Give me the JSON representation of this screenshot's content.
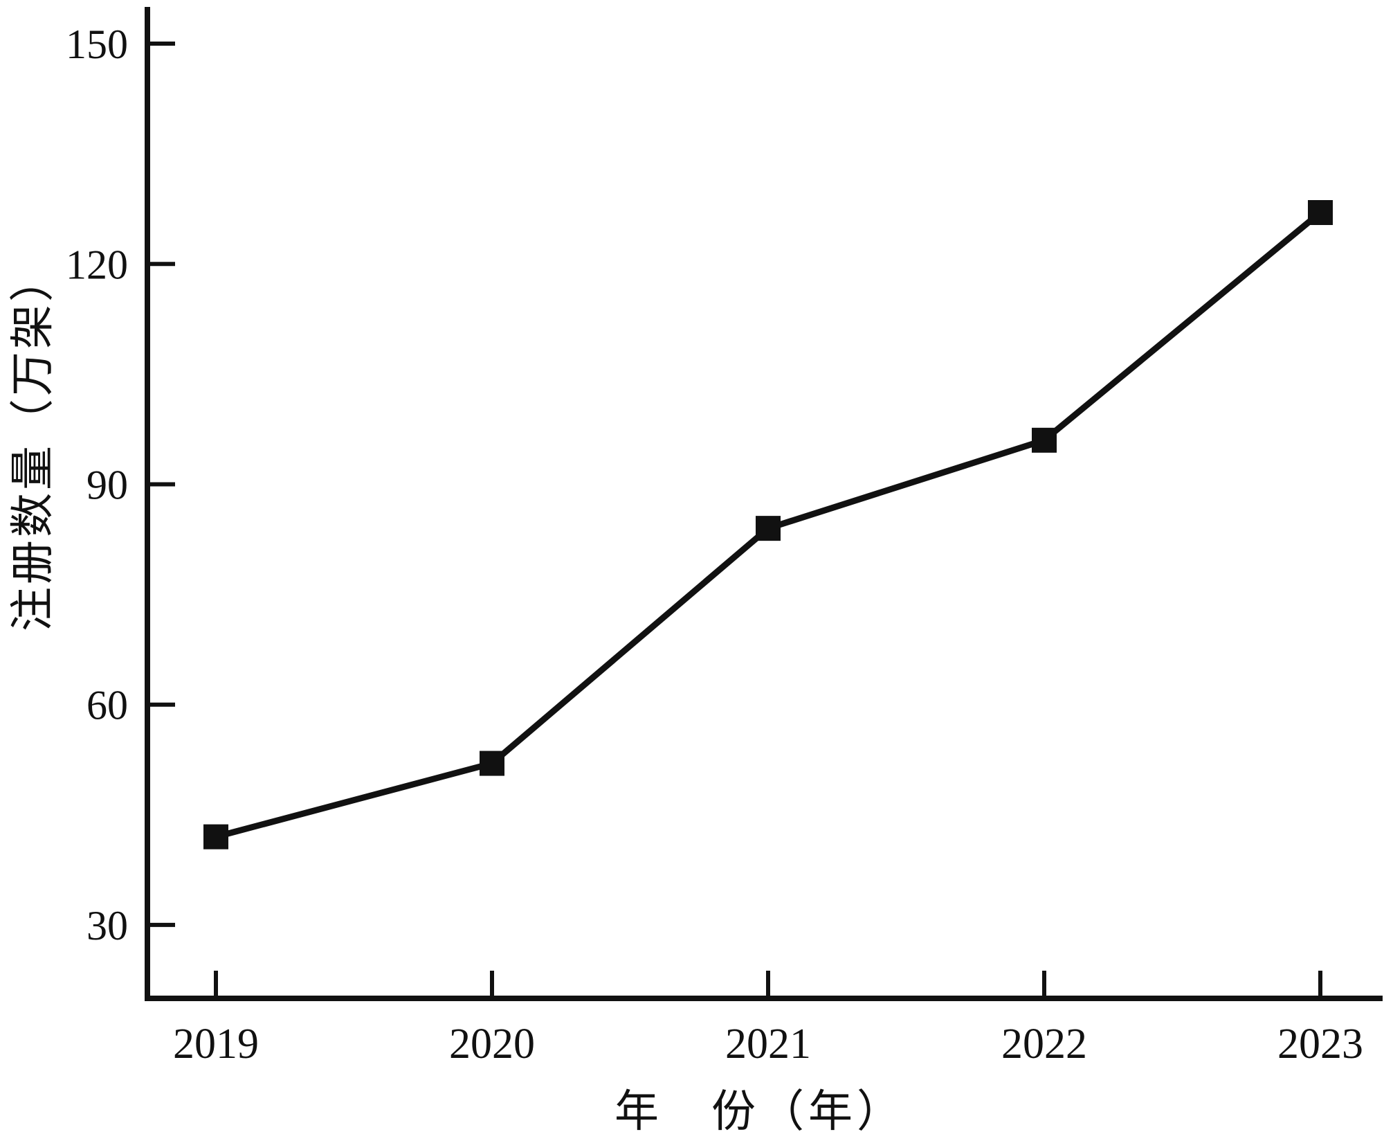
{
  "chart_data": {
    "type": "line",
    "title": "",
    "categories": [
      "2019",
      "2020",
      "2021",
      "2022",
      "2023"
    ],
    "series": [
      {
        "name": "注册数量",
        "values": [
          42,
          52,
          84,
          96,
          127
        ]
      }
    ],
    "xlabel": "年　份（年）",
    "ylabel": "注册数量（万架）",
    "yticks": [
      30,
      60,
      90,
      120,
      150
    ],
    "ylim": [
      20,
      155
    ],
    "grid": false,
    "legend": "none",
    "marker": "filled-square",
    "line_color": "#111111",
    "axis_color": "#111111",
    "background": "#ffffff"
  }
}
